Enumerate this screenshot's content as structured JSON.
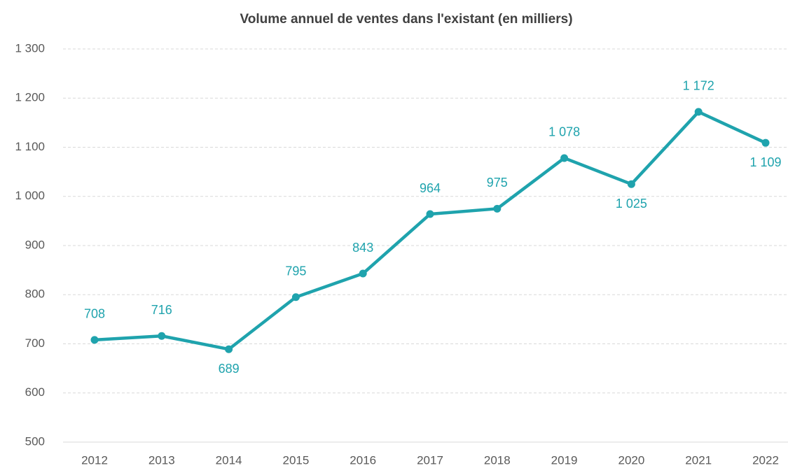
{
  "chart_data": {
    "type": "line",
    "title": "Volume annuel de ventes dans l'existant (en milliers)",
    "categories": [
      "2012",
      "2013",
      "2014",
      "2015",
      "2016",
      "2017",
      "2018",
      "2019",
      "2020",
      "2021",
      "2022"
    ],
    "values": [
      708,
      716,
      689,
      795,
      843,
      964,
      975,
      1078,
      1025,
      1172,
      1109
    ],
    "value_labels": [
      "708",
      "716",
      "689",
      "795",
      "843",
      "964",
      "975",
      "1 078",
      "1 025",
      "1 172",
      "1 109"
    ],
    "color": "#1fa3ad",
    "ylim": [
      500,
      1300
    ],
    "yticks": [
      500,
      600,
      700,
      800,
      900,
      {
        "value": 1000,
        "label": "1 000"
      },
      {
        "value": 1100,
        "label": "1 100"
      },
      {
        "value": 1200,
        "label": "1 200"
      },
      {
        "value": 1300,
        "label": "1 300"
      }
    ],
    "grid": true
  }
}
